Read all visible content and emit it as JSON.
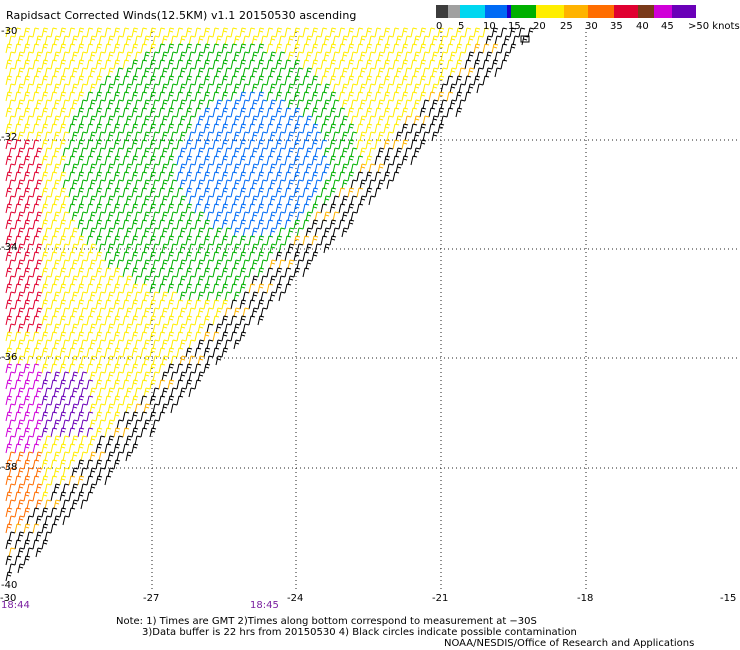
{
  "header": {
    "title": "Rapidsact Corrected Winds(12.5KM) v1.1 20150530 ascending"
  },
  "legend": {
    "swatch_colors": [
      "#3c3c3c",
      "#a0a0a0",
      "#00d7f0",
      "#006bf5",
      "#1c00c8",
      "#00b000",
      "#ffee00",
      "#ffb300",
      "#ff6d00",
      "#e00030",
      "#7a3a1a",
      "#d000d8",
      "#6a00b8"
    ],
    "labels": [
      "0",
      "5",
      "10",
      "15",
      "20",
      "25",
      "30",
      "35",
      "40",
      "45",
      ">50 knots"
    ]
  },
  "axes": {
    "lat_labels": [
      "-30",
      "-32",
      "-34",
      "-36",
      "-38",
      "-40"
    ],
    "lon_labels": [
      "-30",
      "-27",
      "-24",
      "-21",
      "-18",
      "-15"
    ]
  },
  "times": {
    "left": "18:44",
    "mid": "18:45"
  },
  "notes": {
    "line1": "Note: 1) Times are GMT 2)Times along bottom correspond to measurement at −30S",
    "line2": "3)Data buffer is 22 hrs from 20150530 4) Black circles indicate possible contamination",
    "line3": "NOAA/NESDIS/Office of Research and Applications"
  }
}
